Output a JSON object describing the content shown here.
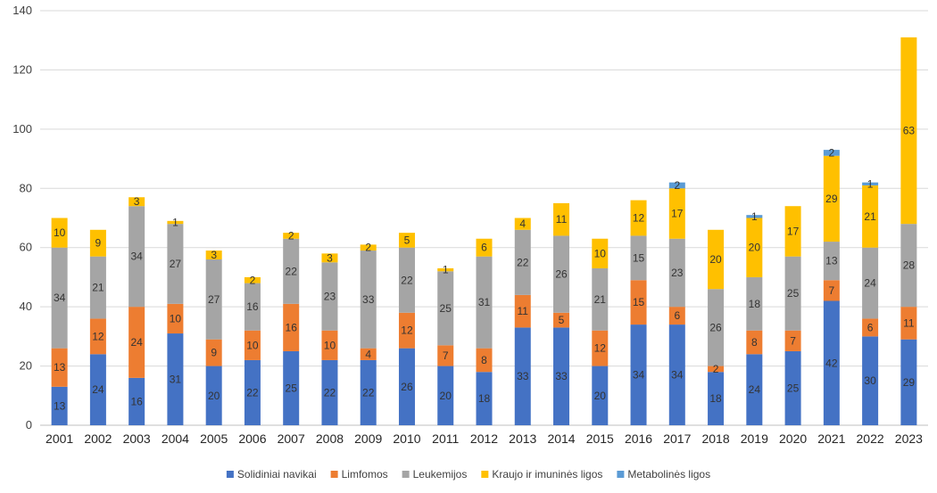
{
  "chart_data": {
    "type": "bar",
    "stacked": true,
    "categories": [
      "2001",
      "2002",
      "2003",
      "2004",
      "2005",
      "2006",
      "2007",
      "2008",
      "2009",
      "2010",
      "2011",
      "2012",
      "2013",
      "2014",
      "2015",
      "2016",
      "2017",
      "2018",
      "2019",
      "2020",
      "2021",
      "2022",
      "2023"
    ],
    "series": [
      {
        "name": "Solidiniai navikai",
        "color": "#4472C4",
        "values": [
          13,
          24,
          16,
          31,
          20,
          22,
          25,
          22,
          22,
          26,
          20,
          18,
          33,
          33,
          20,
          34,
          34,
          18,
          24,
          25,
          42,
          30,
          29
        ]
      },
      {
        "name": "Limfomos",
        "color": "#ED7D31",
        "values": [
          13,
          12,
          24,
          10,
          9,
          10,
          16,
          10,
          4,
          12,
          7,
          8,
          11,
          5,
          12,
          15,
          6,
          2,
          8,
          7,
          7,
          6,
          11
        ]
      },
      {
        "name": "Leukemijos",
        "color": "#A5A5A5",
        "values": [
          34,
          21,
          34,
          27,
          27,
          16,
          22,
          23,
          33,
          22,
          25,
          31,
          22,
          26,
          21,
          15,
          23,
          26,
          18,
          25,
          13,
          24,
          28
        ]
      },
      {
        "name": "Kraujo ir imuninės ligos",
        "color": "#FFC000",
        "values": [
          10,
          9,
          3,
          1,
          3,
          2,
          2,
          3,
          2,
          5,
          1,
          6,
          4,
          11,
          10,
          12,
          17,
          20,
          20,
          17,
          29,
          21,
          63
        ]
      },
      {
        "name": "Metabolinės ligos",
        "color": "#5B9BD5",
        "values": [
          0,
          0,
          0,
          0,
          0,
          0,
          0,
          0,
          0,
          0,
          0,
          0,
          0,
          0,
          0,
          0,
          2,
          0,
          1,
          0,
          2,
          1,
          0
        ]
      }
    ],
    "ylim": [
      0,
      140
    ],
    "yticks": [
      0,
      20,
      40,
      60,
      80,
      100,
      120,
      140
    ],
    "grid": true,
    "legend": "bottom",
    "title": "",
    "xlabel": "",
    "ylabel": ""
  }
}
